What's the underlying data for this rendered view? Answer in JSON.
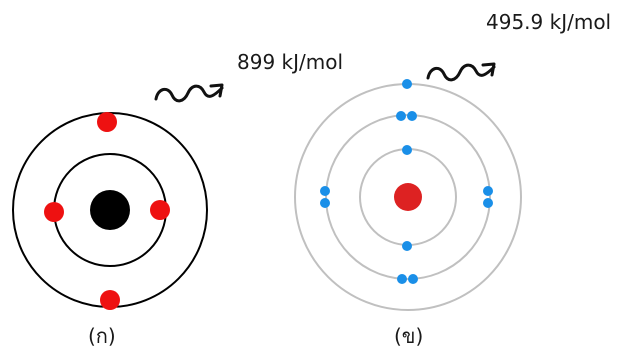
{
  "atom_a": {
    "caption": "(ก)",
    "energy_label": "899 kJ/mol",
    "colors": {
      "shell": "#000000",
      "nucleus": "#000000",
      "electron": "#ee1111"
    }
  },
  "atom_b": {
    "caption": "(ข)",
    "energy_label": "495.9 kJ/mol",
    "colors": {
      "shell": "#c0c0c0",
      "nucleus": "#dd2222",
      "electron": "#1a8fe8"
    }
  },
  "emission_arrow_color": "#111111"
}
